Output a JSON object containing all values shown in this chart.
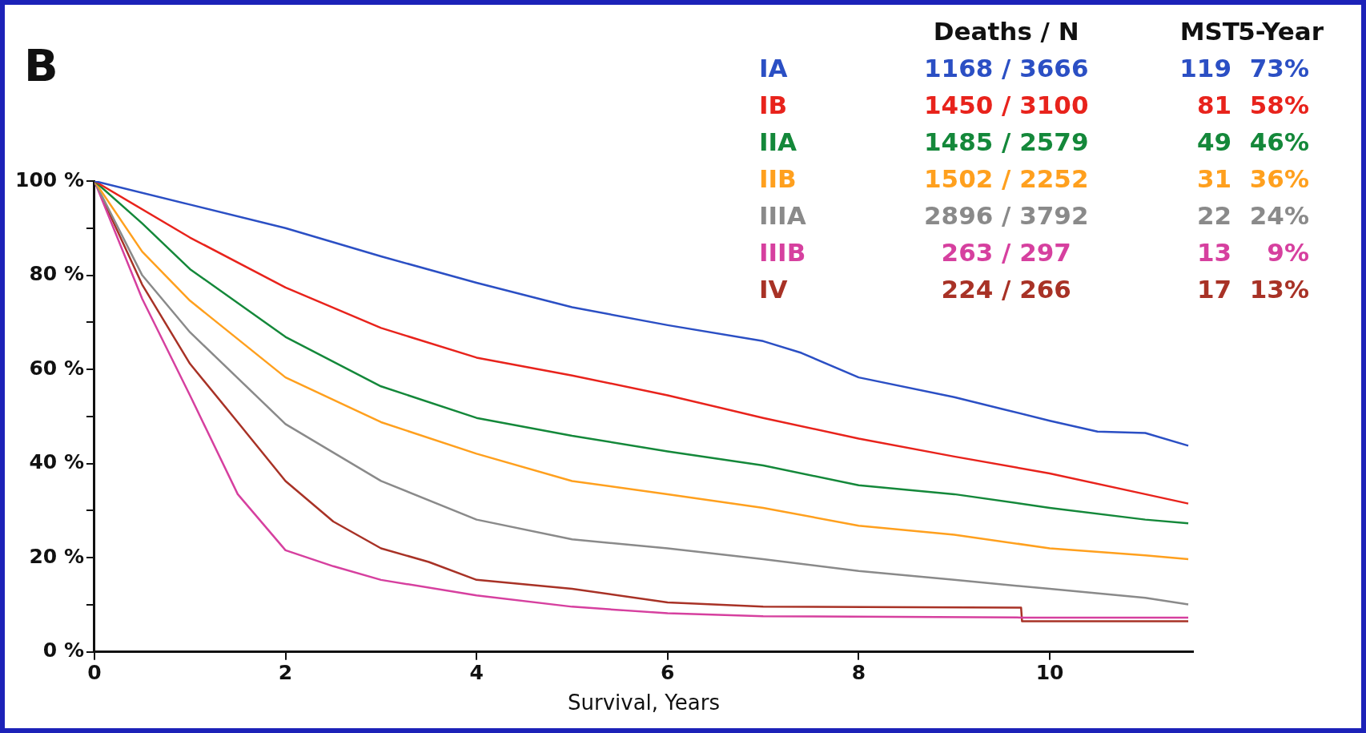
{
  "chart_data": {
    "type": "line",
    "xlabel": "Survival, Years",
    "xlim": [
      0,
      11.5
    ],
    "xticks": [
      0,
      2,
      4,
      6,
      8,
      10
    ],
    "ylim": [
      0,
      100
    ],
    "yticks": [
      {
        "value": 0,
        "label": "0 %"
      },
      {
        "value": 10,
        "label": null
      },
      {
        "value": 20,
        "label": "20 %"
      },
      {
        "value": 30,
        "label": null
      },
      {
        "value": 40,
        "label": "40 %"
      },
      {
        "value": 50,
        "label": null
      },
      {
        "value": 60,
        "label": "60 %"
      },
      {
        "value": 70,
        "label": null
      },
      {
        "value": 80,
        "label": "80 %"
      },
      {
        "value": 90,
        "label": null
      },
      {
        "value": 100,
        "label": "100 %"
      }
    ],
    "grid": false,
    "legend": "top right",
    "marker": "none",
    "line_style": "solid",
    "annotations": [
      "B",
      "Deaths / N",
      "MST",
      "5-Year",
      "1168 / 3666",
      "119",
      "73%",
      "1450 / 3100",
      "81",
      "58%",
      "1485 / 2579",
      "49",
      "46%",
      "1502 / 2252",
      "31",
      "36%",
      "2896 / 3792",
      "22",
      "24%",
      "263 / 297",
      "13",
      "9%",
      "224 / 266",
      "17",
      "13%"
    ],
    "series": [
      {
        "name": "IA",
        "color": "#2b4fc4",
        "x": [
          0,
          1,
          2,
          3,
          4,
          5,
          6,
          7,
          7.4,
          8,
          9,
          9.5,
          10,
          10.5,
          11,
          11.45
        ],
        "values": [
          100,
          95,
          90,
          84,
          78.4,
          73.2,
          69.4,
          66,
          63.5,
          58.3,
          54.1,
          51.6,
          49.1,
          46.8,
          46.5,
          43.8
        ]
      },
      {
        "name": "IB",
        "color": "#e8231c",
        "x": [
          0,
          1,
          2,
          3,
          4,
          5,
          6,
          7,
          8,
          9,
          10,
          11,
          11.45
        ],
        "values": [
          100,
          88,
          77.4,
          68.8,
          62.5,
          58.7,
          54.5,
          49.7,
          45.3,
          41.5,
          37.9,
          33.5,
          31.5
        ]
      },
      {
        "name": "IIA",
        "color": "#14883a",
        "x": [
          0,
          0.5,
          1,
          2,
          3,
          4,
          5,
          6,
          7,
          8,
          9,
          10,
          11,
          11.45
        ],
        "values": [
          100,
          91,
          81.3,
          66.9,
          56.4,
          49.7,
          45.9,
          42.6,
          39.6,
          35.4,
          33.5,
          30.6,
          28.1,
          27.3
        ]
      },
      {
        "name": "IIB",
        "color": "#ffa01e",
        "x": [
          0,
          0.5,
          1,
          2,
          3,
          4,
          5,
          6,
          7,
          8,
          9,
          10,
          11,
          11.45
        ],
        "values": [
          100,
          85,
          74.6,
          58.3,
          48.8,
          42.1,
          36.3,
          33.5,
          30.6,
          26.8,
          24.9,
          22,
          20.5,
          19.7
        ]
      },
      {
        "name": "IIIA",
        "color": "#8a8a8a",
        "x": [
          0,
          0.5,
          1,
          2,
          3,
          4,
          5,
          6,
          7,
          8,
          9,
          10,
          11,
          11.45
        ],
        "values": [
          100,
          80,
          67.9,
          48.4,
          36.3,
          28.1,
          23.9,
          22,
          19.7,
          17.2,
          15.3,
          13.4,
          11.5,
          10.1
        ]
      },
      {
        "name": "IIIB",
        "color": "#d6409f",
        "x": [
          0,
          0.5,
          1,
          1.5,
          2,
          2.5,
          3,
          4,
          5,
          6,
          7,
          9.7,
          11.45
        ],
        "values": [
          100,
          75,
          54.5,
          33.5,
          21.6,
          18.2,
          15.3,
          12,
          9.6,
          8.2,
          7.6,
          7.3,
          7.3
        ]
      },
      {
        "name": "IV",
        "color": "#a83226",
        "x": [
          0,
          0.5,
          1,
          1.5,
          2,
          2.5,
          3,
          3.5,
          4,
          5,
          6,
          7,
          9.7,
          9.71,
          11.45
        ],
        "values": [
          100,
          78,
          61.2,
          48.8,
          36.3,
          27.7,
          22,
          19.1,
          15.3,
          13.4,
          10.5,
          9.6,
          9.4,
          6.5,
          6.5
        ]
      }
    ]
  }
}
